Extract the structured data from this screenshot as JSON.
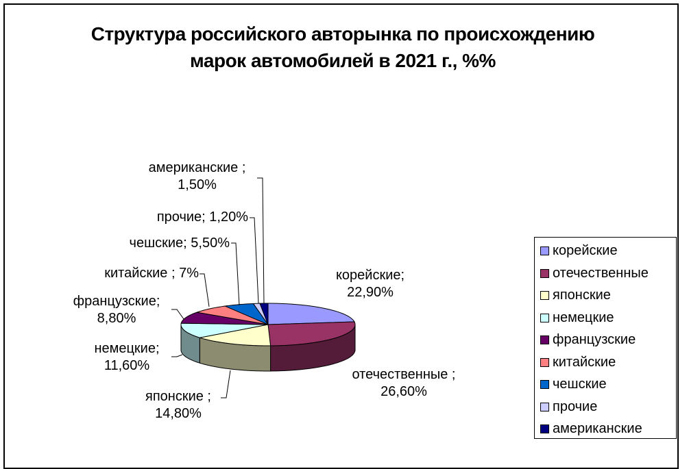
{
  "title": {
    "line1": "Структура российского авторынка по происхождению",
    "line2": "марок автомобилей в 2021 г., %%"
  },
  "chart_data": {
    "type": "pie",
    "variant": "3d-pie",
    "title": "Структура российского авторынка по происхождению марок автомобилей в 2021 г., %%",
    "categories": [
      "корейские",
      "отечественные",
      "японские",
      "немецкие",
      "французские",
      "китайские",
      "чешские",
      "прочие",
      "американские"
    ],
    "values": [
      22.9,
      26.6,
      14.8,
      11.6,
      8.8,
      7.0,
      5.5,
      1.2,
      1.5
    ],
    "colors": [
      "#9999FF",
      "#993366",
      "#FFFFCC",
      "#CCFFFF",
      "#660066",
      "#FF8080",
      "#0066CC",
      "#CCCCFF",
      "#000080"
    ],
    "data_labels": [
      "корейские; 22,90%",
      "отечественные ; 26,60%",
      "японские ; 14,80%",
      "немецкие; 11,60%",
      "французские; 8,80%",
      "китайские ; 7%",
      "чешские; 5,50%",
      "прочие; 1,20%",
      "американские ; 1,50%"
    ],
    "legend_position": "right",
    "unit": "%"
  },
  "labels": {
    "korean": {
      "line1": "корейские;",
      "line2": "22,90%"
    },
    "domestic": {
      "line1": "отечественные ;",
      "line2": "26,60%"
    },
    "japanese": {
      "line1": "японские ;",
      "line2": "14,80%"
    },
    "german": {
      "line1": "немецкие;",
      "line2": "11,60%"
    },
    "french": {
      "line1": "французские;",
      "line2": "8,80%"
    },
    "chinese": {
      "line1": "китайские ; 7%"
    },
    "czech": {
      "line1": "чешские; 5,50%"
    },
    "other": {
      "line1": "прочие; 1,20%"
    },
    "american": {
      "line1": "американские ;",
      "line2": "1,50%"
    }
  },
  "legend": {
    "items": [
      {
        "label": "корейские",
        "color": "#9999FF"
      },
      {
        "label": "отечественные",
        "color": "#993366"
      },
      {
        "label": "японские",
        "color": "#FFFFCC"
      },
      {
        "label": "немецкие",
        "color": "#CCFFFF"
      },
      {
        "label": "французские",
        "color": "#660066"
      },
      {
        "label": "китайские",
        "color": "#FF8080"
      },
      {
        "label": "чешские",
        "color": "#0066CC"
      },
      {
        "label": "прочие",
        "color": "#CCCCFF"
      },
      {
        "label": "американские",
        "color": "#000080"
      }
    ]
  }
}
